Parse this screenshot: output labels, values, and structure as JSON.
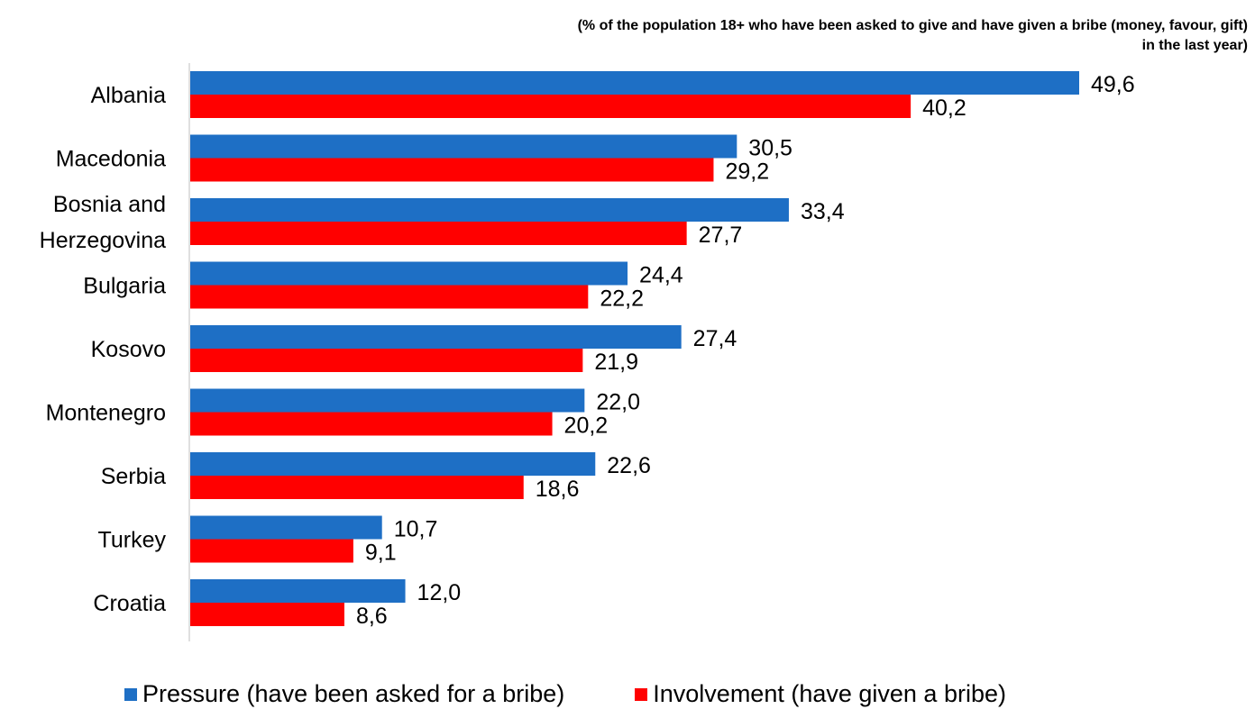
{
  "chart_data": {
    "type": "bar",
    "orientation": "horizontal",
    "subtitle": "(% of the population 18+ who have been asked to give and have given a bribe (money, favour, gift)\nin the last year)",
    "categories": [
      "Albania",
      "Macedonia",
      "Bosnia and Herzegovina",
      "Bulgaria",
      "Kosovo",
      "Montenegro",
      "Serbia",
      "Turkey",
      "Croatia"
    ],
    "category_lines": [
      [
        "Albania"
      ],
      [
        "Macedonia"
      ],
      [
        "Bosnia and",
        "Herzegovina"
      ],
      [
        "Bulgaria"
      ],
      [
        "Kosovo"
      ],
      [
        "Montenegro"
      ],
      [
        "Serbia"
      ],
      [
        "Turkey"
      ],
      [
        "Croatia"
      ]
    ],
    "series": [
      {
        "name": "Pressure (have been asked for a bribe)",
        "color": "#1e6fc5",
        "values": [
          49.6,
          30.5,
          33.4,
          24.4,
          27.4,
          22.0,
          22.6,
          10.7,
          12.0
        ],
        "labels": [
          "49,6",
          "30,5",
          "33,4",
          "24,4",
          "27,4",
          "22,0",
          "22,6",
          "10,7",
          "12,0"
        ]
      },
      {
        "name": "Involvement (have given a bribe)",
        "color": "#ff0000",
        "values": [
          40.2,
          29.2,
          27.7,
          22.2,
          21.9,
          20.2,
          18.6,
          9.1,
          8.6
        ],
        "labels": [
          "40,2",
          "29,2",
          "27,7",
          "22,2",
          "21,9",
          "20,2",
          "18,6",
          "9,1",
          "8,6"
        ]
      }
    ],
    "xlim": [
      0,
      50
    ],
    "grid": false,
    "legend_position": "bottom"
  }
}
